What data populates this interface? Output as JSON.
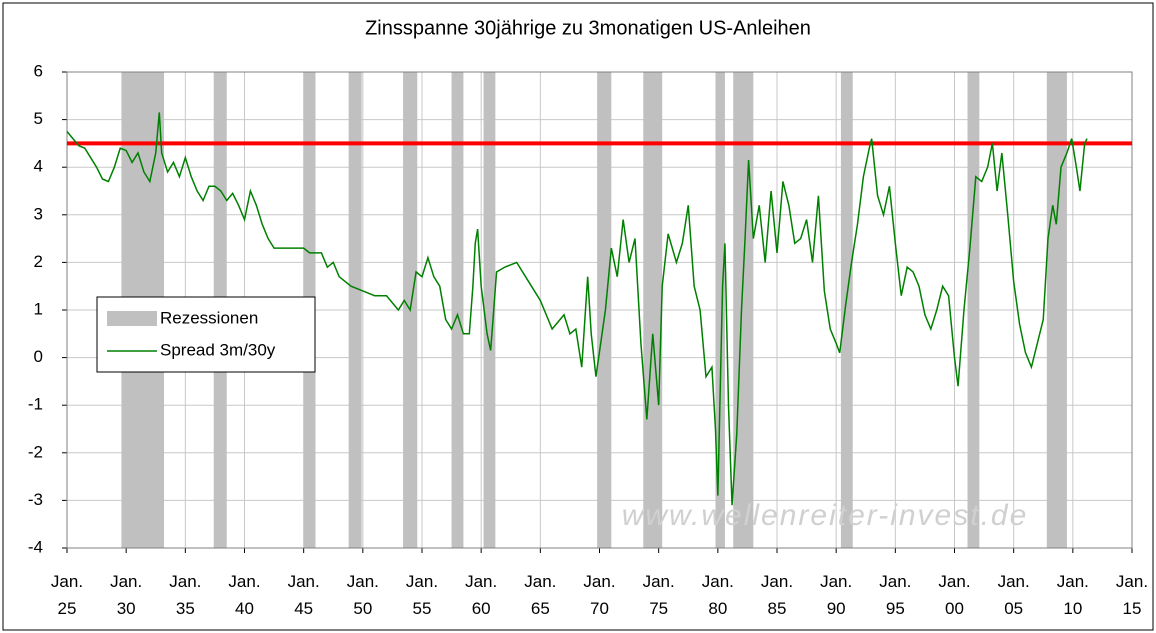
{
  "chart_data": {
    "type": "line",
    "title": "Zinsspanne 30jährige zu 3monatigen US-Anleihen",
    "annotation": "www.wellenreiter-invest.de",
    "xlim": [
      1925,
      2015
    ],
    "xticks": [
      {
        "value": 1925,
        "label": "Jan. 25"
      },
      {
        "value": 1930,
        "label": "Jan. 30"
      },
      {
        "value": 1935,
        "label": "Jan. 35"
      },
      {
        "value": 1940,
        "label": "Jan. 40"
      },
      {
        "value": 1945,
        "label": "Jan. 45"
      },
      {
        "value": 1950,
        "label": "Jan. 50"
      },
      {
        "value": 1955,
        "label": "Jan. 55"
      },
      {
        "value": 1960,
        "label": "Jan. 60"
      },
      {
        "value": 1965,
        "label": "Jan. 65"
      },
      {
        "value": 1970,
        "label": "Jan. 70"
      },
      {
        "value": 1975,
        "label": "Jan. 75"
      },
      {
        "value": 1980,
        "label": "Jan. 80"
      },
      {
        "value": 1985,
        "label": "Jan. 85"
      },
      {
        "value": 1990,
        "label": "Jan. 90"
      },
      {
        "value": 1995,
        "label": "Jan. 95"
      },
      {
        "value": 2000,
        "label": "Jan. 00"
      },
      {
        "value": 2005,
        "label": "Jan. 05"
      },
      {
        "value": 2010,
        "label": "Jan. 10"
      },
      {
        "value": 2015,
        "label": "Jan. 15"
      }
    ],
    "ylim": [
      -4,
      6
    ],
    "yticks": [
      -4,
      -3,
      -2,
      -1,
      0,
      1,
      2,
      3,
      4,
      5,
      6
    ],
    "grid": true,
    "recessions": {
      "name": "Rezessionen",
      "color": "#c0c0c0",
      "bands": [
        [
          1929.6,
          1933.2
        ],
        [
          1937.4,
          1938.5
        ],
        [
          1945.0,
          1946.0
        ],
        [
          1948.8,
          1949.9
        ],
        [
          1953.4,
          1954.6
        ],
        [
          1957.5,
          1958.5
        ],
        [
          1960.2,
          1961.2
        ],
        [
          1969.8,
          1971.0
        ],
        [
          1973.7,
          1975.3
        ],
        [
          1979.8,
          1980.6
        ],
        [
          1981.3,
          1983.0
        ],
        [
          1990.4,
          1991.4
        ],
        [
          2001.1,
          2002.1
        ],
        [
          2007.8,
          2009.5
        ]
      ]
    },
    "reference_line": {
      "value": 4.5,
      "color": "#ff0000"
    },
    "series": [
      {
        "name": "Spread 3m/30y",
        "color": "#008000",
        "x": [
          1925.0,
          1925.5,
          1926,
          1926.5,
          1927,
          1927.5,
          1928,
          1928.5,
          1929,
          1929.5,
          1930,
          1930.5,
          1931,
          1931.5,
          1932,
          1932.5,
          1932.8,
          1933,
          1933.5,
          1934,
          1934.5,
          1935,
          1935.5,
          1936,
          1936.5,
          1937,
          1937.5,
          1938,
          1938.5,
          1939,
          1939.5,
          1940,
          1940.5,
          1941,
          1941.5,
          1942,
          1942.5,
          1943,
          1944,
          1945,
          1945.5,
          1946,
          1946.5,
          1947,
          1947.5,
          1948,
          1949,
          1950,
          1951,
          1952,
          1953,
          1953.5,
          1954,
          1954.5,
          1955,
          1955.5,
          1956,
          1956.5,
          1957,
          1957.5,
          1958,
          1958.5,
          1959,
          1959.3,
          1959.5,
          1959.7,
          1960,
          1960.5,
          1960.8,
          1961,
          1961.3,
          1962,
          1963,
          1964,
          1965,
          1966,
          1967,
          1967.5,
          1968,
          1968.5,
          1969,
          1969.3,
          1969.7,
          1970.5,
          1971,
          1971.5,
          1972,
          1972.5,
          1973,
          1973.5,
          1974,
          1974.5,
          1975,
          1975.3,
          1975.8,
          1976.5,
          1977,
          1977.5,
          1978,
          1978.5,
          1979,
          1979.5,
          1979.8,
          1980.0,
          1980.4,
          1980.6,
          1980.9,
          1981.2,
          1981.6,
          1982,
          1982.3,
          1982.6,
          1983,
          1983.5,
          1984,
          1984.5,
          1985,
          1985.5,
          1986,
          1986.5,
          1987,
          1987.5,
          1988,
          1988.5,
          1989,
          1989.5,
          1990,
          1990.3,
          1990.8,
          1991.3,
          1991.8,
          1992.3,
          1992.8,
          1993,
          1993.5,
          1994,
          1994.5,
          1995,
          1995.5,
          1996,
          1996.5,
          1997,
          1997.5,
          1998,
          1998.5,
          1999,
          1999.5,
          2000,
          2000.3,
          2000.8,
          2001.3,
          2001.8,
          2002.3,
          2002.8,
          2003.2,
          2003.6,
          2004,
          2004.5,
          2005,
          2005.5,
          2006,
          2006.5,
          2007,
          2007.5,
          2007.9,
          2008.3,
          2008.6,
          2009,
          2009.5,
          2009.9,
          2010.3,
          2010.6,
          2011,
          2011.2
        ],
        "values": [
          4.75,
          4.6,
          4.45,
          4.4,
          4.2,
          4.0,
          3.75,
          3.7,
          4.0,
          4.4,
          4.35,
          4.1,
          4.3,
          3.9,
          3.7,
          4.3,
          5.15,
          4.3,
          3.9,
          4.1,
          3.8,
          4.2,
          3.8,
          3.5,
          3.3,
          3.6,
          3.6,
          3.5,
          3.3,
          3.45,
          3.2,
          2.9,
          3.5,
          3.2,
          2.8,
          2.5,
          2.3,
          2.3,
          2.3,
          2.3,
          2.2,
          2.2,
          2.2,
          1.9,
          2.0,
          1.7,
          1.5,
          1.4,
          1.3,
          1.3,
          1.0,
          1.2,
          1.0,
          1.8,
          1.7,
          2.1,
          1.7,
          1.5,
          0.8,
          0.6,
          0.9,
          0.5,
          0.5,
          1.5,
          2.4,
          2.7,
          1.5,
          0.5,
          0.15,
          0.8,
          1.8,
          1.9,
          2.0,
          1.6,
          1.2,
          0.6,
          0.9,
          0.5,
          0.6,
          -0.2,
          1.7,
          0.5,
          -0.4,
          1.0,
          2.3,
          1.7,
          2.9,
          2.0,
          2.5,
          0.3,
          -1.3,
          0.5,
          -1.0,
          1.5,
          2.6,
          2.0,
          2.4,
          3.2,
          1.5,
          1.0,
          -0.4,
          -0.2,
          -1.5,
          -2.9,
          1.5,
          2.4,
          -1.0,
          -3.1,
          -1.6,
          1.0,
          2.5,
          4.15,
          2.5,
          3.2,
          2.0,
          3.5,
          2.2,
          3.7,
          3.2,
          2.4,
          2.5,
          2.9,
          2.0,
          3.4,
          1.4,
          0.6,
          0.3,
          0.1,
          1.1,
          2.0,
          2.8,
          3.8,
          4.4,
          4.6,
          3.4,
          3.0,
          3.6,
          2.4,
          1.3,
          1.9,
          1.8,
          1.5,
          0.9,
          0.6,
          1.0,
          1.5,
          1.3,
          0.0,
          -0.6,
          1.0,
          2.3,
          3.8,
          3.7,
          4.0,
          4.5,
          3.5,
          4.3,
          3.0,
          1.6,
          0.7,
          0.1,
          -0.2,
          0.3,
          0.8,
          2.5,
          3.2,
          2.8,
          4.0,
          4.3,
          4.6,
          4.0,
          3.5,
          4.5,
          4.6
        ]
      }
    ]
  }
}
